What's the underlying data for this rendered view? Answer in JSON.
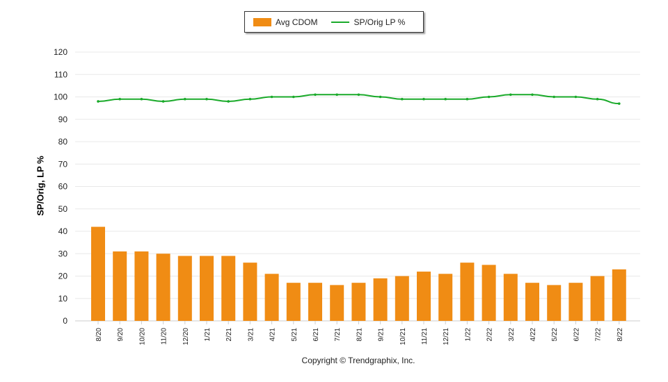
{
  "chart_data": {
    "type": "bar+line",
    "categories": [
      "8/20",
      "9/20",
      "10/20",
      "11/20",
      "12/20",
      "1/21",
      "2/21",
      "3/21",
      "4/21",
      "5/21",
      "6/21",
      "7/21",
      "8/21",
      "9/21",
      "10/21",
      "11/21",
      "12/21",
      "1/22",
      "2/22",
      "3/22",
      "4/22",
      "5/22",
      "6/22",
      "7/22",
      "8/22"
    ],
    "series": [
      {
        "name": "Avg CDOM",
        "type": "bar",
        "color": "#F08C14",
        "values": [
          42,
          31,
          31,
          30,
          29,
          29,
          29,
          26,
          21,
          17,
          17,
          16,
          17,
          19,
          20,
          22,
          21,
          26,
          25,
          21,
          17,
          16,
          17,
          20,
          23
        ]
      },
      {
        "name": "SP/Orig LP %",
        "type": "line",
        "color": "#1AAA2A",
        "values": [
          98,
          99,
          99,
          98,
          99,
          99,
          98,
          99,
          100,
          100,
          101,
          101,
          101,
          100,
          99,
          99,
          99,
          99,
          100,
          101,
          101,
          100,
          100,
          99,
          97
        ]
      }
    ],
    "ylabel": "SP/Orig, LP %",
    "ylim": [
      0,
      120
    ],
    "yticks": [
      0,
      10,
      20,
      30,
      40,
      50,
      60,
      70,
      80,
      90,
      100,
      110,
      120
    ],
    "grid": true,
    "legend": "top"
  },
  "copyright": "Copyright © Trendgraphix, Inc."
}
